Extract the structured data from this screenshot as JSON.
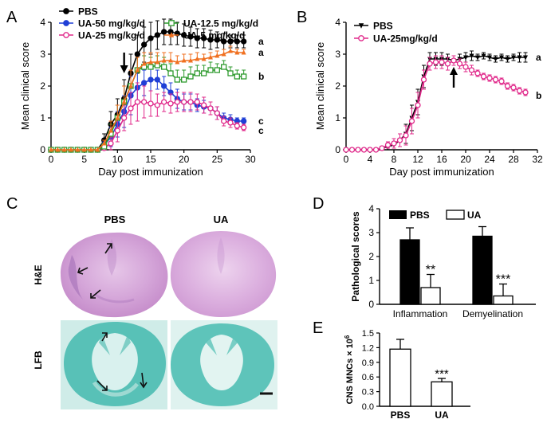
{
  "panel_letters": {
    "a": "A",
    "b": "B",
    "c": "C",
    "d": "D",
    "e": "E"
  },
  "chart_data": [
    {
      "id": "A",
      "type": "line",
      "xlabel": "Day post immunization",
      "ylabel": "Mean clinical score",
      "xlim": [
        0,
        30
      ],
      "ylim": [
        0,
        4
      ],
      "xticks": [
        0,
        5,
        10,
        15,
        20,
        25,
        30
      ],
      "yticks": [
        0,
        1,
        2,
        3,
        4
      ],
      "x": [
        0,
        1,
        2,
        3,
        4,
        5,
        6,
        7,
        8,
        9,
        10,
        11,
        12,
        13,
        14,
        15,
        16,
        17,
        18,
        19,
        20,
        21,
        22,
        23,
        24,
        25,
        26,
        27,
        28,
        29
      ],
      "series": [
        {
          "name": "PBS",
          "color": "#000000",
          "marker": "filled-circle",
          "values": [
            0,
            0,
            0,
            0,
            0,
            0,
            0,
            0,
            0.3,
            0.8,
            1.1,
            1.6,
            2.4,
            3.0,
            3.3,
            3.5,
            3.6,
            3.7,
            3.7,
            3.65,
            3.6,
            3.55,
            3.5,
            3.5,
            3.45,
            3.45,
            3.4,
            3.4,
            3.4,
            3.4
          ],
          "errors": [
            0,
            0,
            0,
            0,
            0,
            0,
            0,
            0,
            0.2,
            0.4,
            0.5,
            0.6,
            0.6,
            0.6,
            0.55,
            0.5,
            0.45,
            0.4,
            0.4,
            0.35,
            0.35,
            0.3,
            0.3,
            0.3,
            0.3,
            0.25,
            0.25,
            0.2,
            0.2,
            0.2
          ],
          "end_label": "a"
        },
        {
          "name": "UA-50 mg/kg/d",
          "color": "#1f3fd6",
          "marker": "filled-circle",
          "values": [
            0,
            0,
            0,
            0,
            0,
            0,
            0,
            0,
            0.15,
            0.4,
            0.8,
            1.2,
            1.7,
            1.95,
            2.1,
            2.2,
            2.2,
            2.0,
            1.8,
            1.6,
            1.5,
            1.5,
            1.4,
            1.35,
            1.3,
            1.15,
            1.0,
            0.95,
            0.9,
            0.9
          ],
          "errors": [
            0,
            0,
            0,
            0,
            0,
            0,
            0,
            0,
            0.1,
            0.3,
            0.4,
            0.5,
            0.6,
            0.5,
            0.4,
            0.35,
            0.3,
            0.3,
            0.3,
            0.3,
            0.25,
            0.25,
            0.2,
            0.2,
            0.2,
            0.2,
            0.15,
            0.15,
            0.1,
            0.1
          ],
          "end_label": "c"
        },
        {
          "name": "UA-25 mg/kg/d",
          "color": "#e0288a",
          "marker": "open-circle",
          "values": [
            0,
            0,
            0,
            0,
            0,
            0,
            0,
            0,
            0.05,
            0.2,
            0.6,
            1.0,
            1.3,
            1.5,
            1.5,
            1.45,
            1.4,
            1.5,
            1.45,
            1.5,
            1.5,
            1.5,
            1.5,
            1.4,
            1.3,
            1.15,
            0.9,
            0.85,
            0.75,
            0.7
          ],
          "errors": [
            0,
            0,
            0,
            0,
            0,
            0,
            0,
            0,
            0.05,
            0.2,
            0.35,
            0.4,
            0.5,
            0.6,
            0.5,
            0.4,
            0.35,
            0.3,
            0.3,
            0.3,
            0.3,
            0.3,
            0.25,
            0.25,
            0.2,
            0.2,
            0.15,
            0.15,
            0.1,
            0.1
          ],
          "end_label": "c"
        },
        {
          "name": "UA-12.5 mg/kg/d",
          "color": "#2e9a2e",
          "marker": "open-square",
          "values": [
            0,
            0,
            0,
            0,
            0,
            0,
            0,
            0,
            0.1,
            0.5,
            1.0,
            1.5,
            2.0,
            2.5,
            2.6,
            2.6,
            2.65,
            2.6,
            2.4,
            2.2,
            2.2,
            2.3,
            2.4,
            2.4,
            2.5,
            2.5,
            2.6,
            2.4,
            2.3,
            2.3
          ],
          "errors": [
            0,
            0,
            0,
            0,
            0,
            0,
            0,
            0,
            0.1,
            0.3,
            0.4,
            0.5,
            0.5,
            0.4,
            0.35,
            0.3,
            0.3,
            0.3,
            0.3,
            0.3,
            0.3,
            0.3,
            0.25,
            0.25,
            0.25,
            0.2,
            0.2,
            0.2,
            0.2,
            0.2
          ],
          "end_label": "b"
        },
        {
          "name": "UA-5 mg/kg/d",
          "color": "#f07020",
          "marker": "filled-triangle",
          "values": [
            0,
            0,
            0,
            0,
            0,
            0,
            0,
            0,
            0.2,
            0.6,
            1.0,
            1.5,
            2.0,
            2.5,
            2.7,
            2.75,
            2.75,
            2.8,
            2.8,
            2.75,
            2.8,
            2.8,
            2.85,
            2.85,
            2.9,
            2.95,
            3.0,
            3.1,
            3.05,
            3.05
          ],
          "errors": [
            0,
            0,
            0,
            0,
            0,
            0,
            0,
            0,
            0.1,
            0.3,
            0.4,
            0.5,
            0.5,
            0.4,
            0.35,
            0.3,
            0.3,
            0.25,
            0.25,
            0.2,
            0.2,
            0.2,
            0.2,
            0.15,
            0.15,
            0.15,
            0.15,
            0.15,
            0.1,
            0.1
          ],
          "end_label": "a"
        }
      ],
      "annotation": {
        "type": "arrow-down",
        "x": 11,
        "y": 2.4
      }
    },
    {
      "id": "B",
      "type": "line",
      "xlabel": "Day post immunization",
      "ylabel": "Mean clinical score",
      "xlim": [
        0,
        32
      ],
      "ylim": [
        0,
        4
      ],
      "xticks": [
        0,
        4,
        8,
        12,
        16,
        20,
        24,
        28,
        32
      ],
      "yticks": [
        0,
        1,
        2,
        3,
        4
      ],
      "x": [
        0,
        1,
        2,
        3,
        4,
        5,
        6,
        7,
        8,
        9,
        10,
        11,
        12,
        13,
        14,
        15,
        16,
        17,
        18,
        19,
        20,
        21,
        22,
        23,
        24,
        25,
        26,
        27,
        28,
        29,
        30
      ],
      "series": [
        {
          "name": "PBS",
          "color": "#000000",
          "marker": "filled-triangle-down",
          "values": [
            0,
            0,
            0,
            0,
            0,
            0,
            0.05,
            0.1,
            0.15,
            0.3,
            0.5,
            1.0,
            1.5,
            2.3,
            2.85,
            2.85,
            2.85,
            2.85,
            2.8,
            2.85,
            2.9,
            2.95,
            2.9,
            2.95,
            2.9,
            2.85,
            2.9,
            2.85,
            2.9,
            2.9,
            2.9
          ],
          "errors": [
            0,
            0,
            0,
            0,
            0,
            0,
            0.05,
            0.1,
            0.1,
            0.2,
            0.3,
            0.4,
            0.4,
            0.35,
            0.2,
            0.2,
            0.2,
            0.15,
            0.15,
            0.15,
            0.15,
            0.15,
            0.1,
            0.1,
            0.1,
            0.1,
            0.1,
            0.1,
            0.1,
            0.15,
            0.15
          ],
          "end_label": "a"
        },
        {
          "name": "UA-25mg/kg/d",
          "color": "#e0288a",
          "marker": "open-circle",
          "values": [
            0,
            0,
            0,
            0,
            0,
            0,
            0.05,
            0.15,
            0.2,
            0.3,
            0.45,
            0.9,
            1.4,
            2.2,
            2.7,
            2.75,
            2.75,
            2.7,
            2.8,
            2.7,
            2.6,
            2.5,
            2.4,
            2.3,
            2.25,
            2.2,
            2.15,
            2.0,
            1.95,
            1.85,
            1.8
          ],
          "errors": [
            0,
            0,
            0,
            0,
            0,
            0,
            0.05,
            0.1,
            0.15,
            0.2,
            0.3,
            0.4,
            0.4,
            0.3,
            0.2,
            0.2,
            0.2,
            0.2,
            0.15,
            0.15,
            0.15,
            0.15,
            0.1,
            0.1,
            0.1,
            0.1,
            0.1,
            0.1,
            0.1,
            0.1,
            0.1
          ],
          "end_label": "b"
        }
      ],
      "annotation": {
        "type": "arrow-up",
        "x": 18,
        "y": 2.6
      }
    },
    {
      "id": "D",
      "type": "bar",
      "ylabel": "Pathological scores",
      "ylim": [
        0,
        4
      ],
      "yticks": [
        0,
        1,
        2,
        3,
        4
      ],
      "categories": [
        "Inflammation",
        "Demyelination"
      ],
      "series": [
        {
          "name": "PBS",
          "fill": "#000000",
          "values": [
            2.7,
            2.85
          ],
          "errors": [
            0.5,
            0.4
          ]
        },
        {
          "name": "UA",
          "fill": "#ffffff",
          "values": [
            0.7,
            0.35
          ],
          "errors": [
            0.55,
            0.5
          ]
        }
      ],
      "significance": [
        "**",
        "***"
      ]
    },
    {
      "id": "E",
      "type": "bar",
      "ylabel": "CNS MNCs × 10",
      "ylabel_sup": "6",
      "ylim": [
        0,
        1.5
      ],
      "yticks": [
        "0.0",
        "0.3",
        "0.6",
        "0.9",
        "1.2",
        "1.5"
      ],
      "categories": [
        "PBS",
        "UA"
      ],
      "values": [
        1.17,
        0.5
      ],
      "errors": [
        0.2,
        0.07
      ],
      "significance": [
        "",
        "***"
      ]
    }
  ],
  "panel_c": {
    "columns": [
      "PBS",
      "UA"
    ],
    "rows": [
      "H&E",
      "LFB"
    ]
  }
}
